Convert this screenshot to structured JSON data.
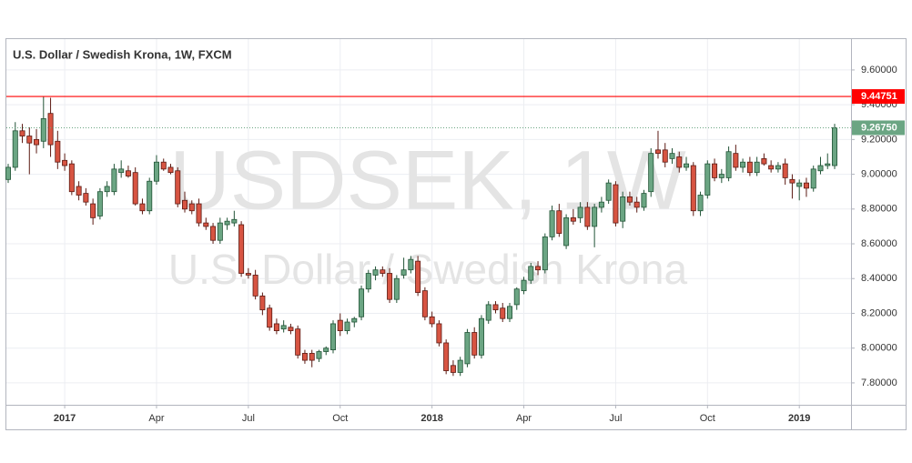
{
  "chart_data": {
    "type": "candlestick",
    "title": "U.S. Dollar / Swedish Krona, 1W, FXCM",
    "watermark": "USDSEK, 1W",
    "watermark_subtitle": "U.S. Dollar / Swedish Krona",
    "categories": [
      null,
      null,
      null,
      null,
      null,
      null,
      null,
      null,
      "2017",
      null,
      null,
      null,
      null,
      null,
      null,
      null,
      null,
      null,
      null,
      null,
      null,
      "Apr",
      null,
      null,
      null,
      null,
      null,
      null,
      null,
      null,
      null,
      null,
      null,
      null,
      "Jul",
      null,
      null,
      null,
      null,
      null,
      null,
      null,
      null,
      null,
      null,
      null,
      null,
      "Oct",
      null,
      null,
      null,
      null,
      null,
      null,
      null,
      null,
      null,
      null,
      null,
      null,
      "2018",
      null,
      null,
      null,
      null,
      null,
      null,
      null,
      null,
      null,
      null,
      null,
      null,
      "Apr",
      null,
      null,
      null,
      null,
      null,
      null,
      null,
      null,
      null,
      null,
      null,
      null,
      "Jul",
      null,
      null,
      null,
      null,
      null,
      null,
      null,
      null,
      null,
      null,
      null,
      null,
      "Oct",
      null,
      null,
      null,
      null,
      null,
      null,
      null,
      null,
      null,
      null,
      null,
      null,
      "2019",
      null,
      null,
      null,
      null,
      null
    ],
    "ohlc": [
      [
        8.97,
        9.06,
        8.95,
        9.04
      ],
      [
        9.04,
        9.3,
        9.02,
        9.25
      ],
      [
        9.25,
        9.29,
        9.18,
        9.22
      ],
      [
        9.22,
        9.27,
        9.0,
        9.18
      ],
      [
        9.2,
        9.26,
        9.12,
        9.17
      ],
      [
        9.19,
        9.45,
        9.15,
        9.32
      ],
      [
        9.35,
        9.44,
        9.1,
        9.17
      ],
      [
        9.19,
        9.25,
        9.03,
        9.07
      ],
      [
        9.08,
        9.12,
        9.02,
        9.05
      ],
      [
        9.06,
        9.08,
        8.88,
        8.9
      ],
      [
        8.93,
        8.96,
        8.85,
        8.88
      ],
      [
        8.89,
        8.92,
        8.82,
        8.84
      ],
      [
        8.83,
        8.86,
        8.71,
        8.75
      ],
      [
        8.76,
        8.92,
        8.74,
        8.9
      ],
      [
        8.9,
        8.96,
        8.87,
        8.93
      ],
      [
        8.9,
        9.06,
        8.88,
        9.03
      ],
      [
        9.01,
        9.08,
        8.98,
        9.03
      ],
      [
        9.02,
        9.05,
        8.98,
        8.99
      ],
      [
        9.01,
        9.04,
        8.82,
        8.83
      ],
      [
        8.83,
        8.86,
        8.77,
        8.79
      ],
      [
        8.79,
        8.98,
        8.77,
        8.96
      ],
      [
        8.96,
        9.11,
        8.94,
        9.07
      ],
      [
        9.07,
        9.09,
        9.02,
        9.03
      ],
      [
        9.04,
        9.06,
        9.0,
        9.01
      ],
      [
        9.02,
        9.04,
        8.81,
        8.83
      ],
      [
        8.85,
        8.9,
        8.78,
        8.8
      ],
      [
        8.83,
        8.85,
        8.77,
        8.79
      ],
      [
        8.83,
        8.86,
        8.7,
        8.72
      ],
      [
        8.72,
        8.75,
        8.68,
        8.7
      ],
      [
        8.7,
        8.72,
        8.6,
        8.62
      ],
      [
        8.62,
        8.75,
        8.6,
        8.72
      ],
      [
        8.71,
        8.75,
        8.68,
        8.73
      ],
      [
        8.72,
        8.79,
        8.7,
        8.74
      ],
      [
        8.71,
        8.73,
        8.41,
        8.43
      ],
      [
        8.43,
        8.46,
        8.4,
        8.42
      ],
      [
        8.42,
        8.45,
        8.28,
        8.3
      ],
      [
        8.3,
        8.32,
        8.19,
        8.22
      ],
      [
        8.23,
        8.25,
        8.1,
        8.12
      ],
      [
        8.14,
        8.17,
        8.08,
        8.1
      ],
      [
        8.11,
        8.16,
        8.09,
        8.13
      ],
      [
        8.12,
        8.14,
        8.08,
        8.1
      ],
      [
        8.11,
        8.13,
        7.94,
        7.96
      ],
      [
        7.97,
        7.99,
        7.91,
        7.93
      ],
      [
        7.97,
        7.99,
        7.89,
        7.93
      ],
      [
        7.94,
        7.99,
        7.92,
        7.98
      ],
      [
        7.98,
        8.01,
        7.96,
        8.0
      ],
      [
        7.99,
        8.16,
        7.97,
        8.14
      ],
      [
        8.16,
        8.2,
        8.07,
        8.1
      ],
      [
        8.1,
        8.17,
        8.08,
        8.15
      ],
      [
        8.15,
        8.18,
        8.12,
        8.17
      ],
      [
        8.18,
        8.36,
        8.16,
        8.34
      ],
      [
        8.34,
        8.45,
        8.32,
        8.43
      ],
      [
        8.42,
        8.47,
        8.39,
        8.45
      ],
      [
        8.45,
        8.47,
        8.41,
        8.43
      ],
      [
        8.43,
        8.46,
        8.26,
        8.28
      ],
      [
        8.28,
        8.42,
        8.26,
        8.4
      ],
      [
        8.42,
        8.52,
        8.4,
        8.45
      ],
      [
        8.45,
        8.53,
        8.43,
        8.51
      ],
      [
        8.5,
        8.53,
        8.3,
        8.32
      ],
      [
        8.33,
        8.35,
        8.16,
        8.18
      ],
      [
        8.18,
        8.21,
        8.12,
        8.14
      ],
      [
        8.14,
        8.16,
        8.01,
        8.03
      ],
      [
        8.03,
        8.05,
        7.85,
        7.87
      ],
      [
        7.9,
        7.93,
        7.84,
        7.86
      ],
      [
        7.86,
        7.95,
        7.84,
        7.93
      ],
      [
        7.91,
        8.11,
        7.89,
        8.09
      ],
      [
        8.09,
        8.12,
        7.94,
        7.96
      ],
      [
        7.96,
        8.19,
        7.94,
        8.17
      ],
      [
        8.16,
        8.27,
        8.14,
        8.25
      ],
      [
        8.25,
        8.27,
        8.2,
        8.22
      ],
      [
        8.23,
        8.26,
        8.15,
        8.17
      ],
      [
        8.17,
        8.26,
        8.15,
        8.24
      ],
      [
        8.25,
        8.35,
        8.22,
        8.34
      ],
      [
        8.33,
        8.41,
        8.31,
        8.39
      ],
      [
        8.39,
        8.49,
        8.37,
        8.47
      ],
      [
        8.47,
        8.5,
        8.42,
        8.45
      ],
      [
        8.45,
        8.66,
        8.43,
        8.64
      ],
      [
        8.64,
        8.82,
        8.62,
        8.79
      ],
      [
        8.79,
        8.83,
        8.64,
        8.66
      ],
      [
        8.59,
        8.77,
        8.57,
        8.75
      ],
      [
        8.75,
        8.8,
        8.71,
        8.73
      ],
      [
        8.75,
        8.84,
        8.72,
        8.81
      ],
      [
        8.81,
        8.84,
        8.68,
        8.7
      ],
      [
        8.7,
        8.83,
        8.58,
        8.81
      ],
      [
        8.81,
        8.87,
        8.78,
        8.84
      ],
      [
        8.85,
        8.97,
        8.83,
        8.95
      ],
      [
        8.94,
        8.96,
        8.7,
        8.72
      ],
      [
        8.73,
        8.9,
        8.69,
        8.87
      ],
      [
        8.87,
        8.9,
        8.82,
        8.84
      ],
      [
        8.84,
        8.87,
        8.78,
        8.81
      ],
      [
        8.81,
        8.91,
        8.79,
        8.89
      ],
      [
        8.9,
        9.15,
        8.87,
        9.12
      ],
      [
        9.14,
        9.25,
        9.09,
        9.12
      ],
      [
        9.14,
        9.18,
        9.04,
        9.07
      ],
      [
        9.09,
        9.15,
        9.06,
        9.12
      ],
      [
        9.1,
        9.13,
        9.01,
        9.04
      ],
      [
        9.04,
        9.1,
        9.02,
        9.06
      ],
      [
        9.05,
        9.07,
        8.76,
        8.79
      ],
      [
        8.79,
        8.9,
        8.76,
        8.88
      ],
      [
        8.88,
        9.08,
        8.86,
        9.06
      ],
      [
        9.06,
        9.09,
        8.96,
        8.98
      ],
      [
        8.98,
        9.03,
        8.95,
        9.0
      ],
      [
        8.98,
        9.16,
        8.96,
        9.13
      ],
      [
        9.12,
        9.17,
        9.02,
        9.04
      ],
      [
        9.04,
        9.09,
        9.01,
        9.07
      ],
      [
        9.07,
        9.1,
        8.99,
        9.01
      ],
      [
        9.01,
        9.1,
        8.99,
        9.07
      ],
      [
        9.09,
        9.12,
        9.05,
        9.06
      ],
      [
        9.05,
        9.08,
        9.01,
        9.03
      ],
      [
        9.03,
        9.07,
        9.01,
        9.05
      ],
      [
        9.06,
        9.09,
        8.94,
        8.98
      ],
      [
        8.97,
        9.0,
        8.86,
        8.95
      ],
      [
        8.93,
        8.97,
        8.85,
        8.95
      ],
      [
        8.95,
        8.98,
        8.87,
        8.92
      ],
      [
        8.92,
        9.05,
        8.9,
        9.03
      ],
      [
        9.02,
        9.1,
        9.0,
        9.05
      ],
      [
        9.05,
        9.12,
        9.03,
        9.06
      ],
      [
        9.05,
        9.29,
        9.03,
        9.2675
      ]
    ],
    "up_color": "#6ba583",
    "up_border": "#225437",
    "down_color": "#d75442",
    "down_border": "#5b1a13",
    "hline": {
      "value": 9.44751,
      "label": "9.44751",
      "color": "#ff0000"
    },
    "last_price_label": "9.26750",
    "last_price_color": "#6ba583",
    "ylim": [
      7.674,
      9.767
    ],
    "yticks": [
      {
        "value": 7.8,
        "label": "7.80000"
      },
      {
        "value": 8.0,
        "label": "8.00000"
      },
      {
        "value": 8.2,
        "label": "8.20000"
      },
      {
        "value": 8.4,
        "label": "8.40000"
      },
      {
        "value": 8.6,
        "label": "8.60000"
      },
      {
        "value": 8.8,
        "label": "8.80000"
      },
      {
        "value": 9.0,
        "label": "9.00000"
      },
      {
        "value": 9.2,
        "label": "9.20000"
      },
      {
        "value": 9.4,
        "label": "9.40000"
      },
      {
        "value": 9.6,
        "label": "9.60000"
      }
    ],
    "grid": true
  }
}
